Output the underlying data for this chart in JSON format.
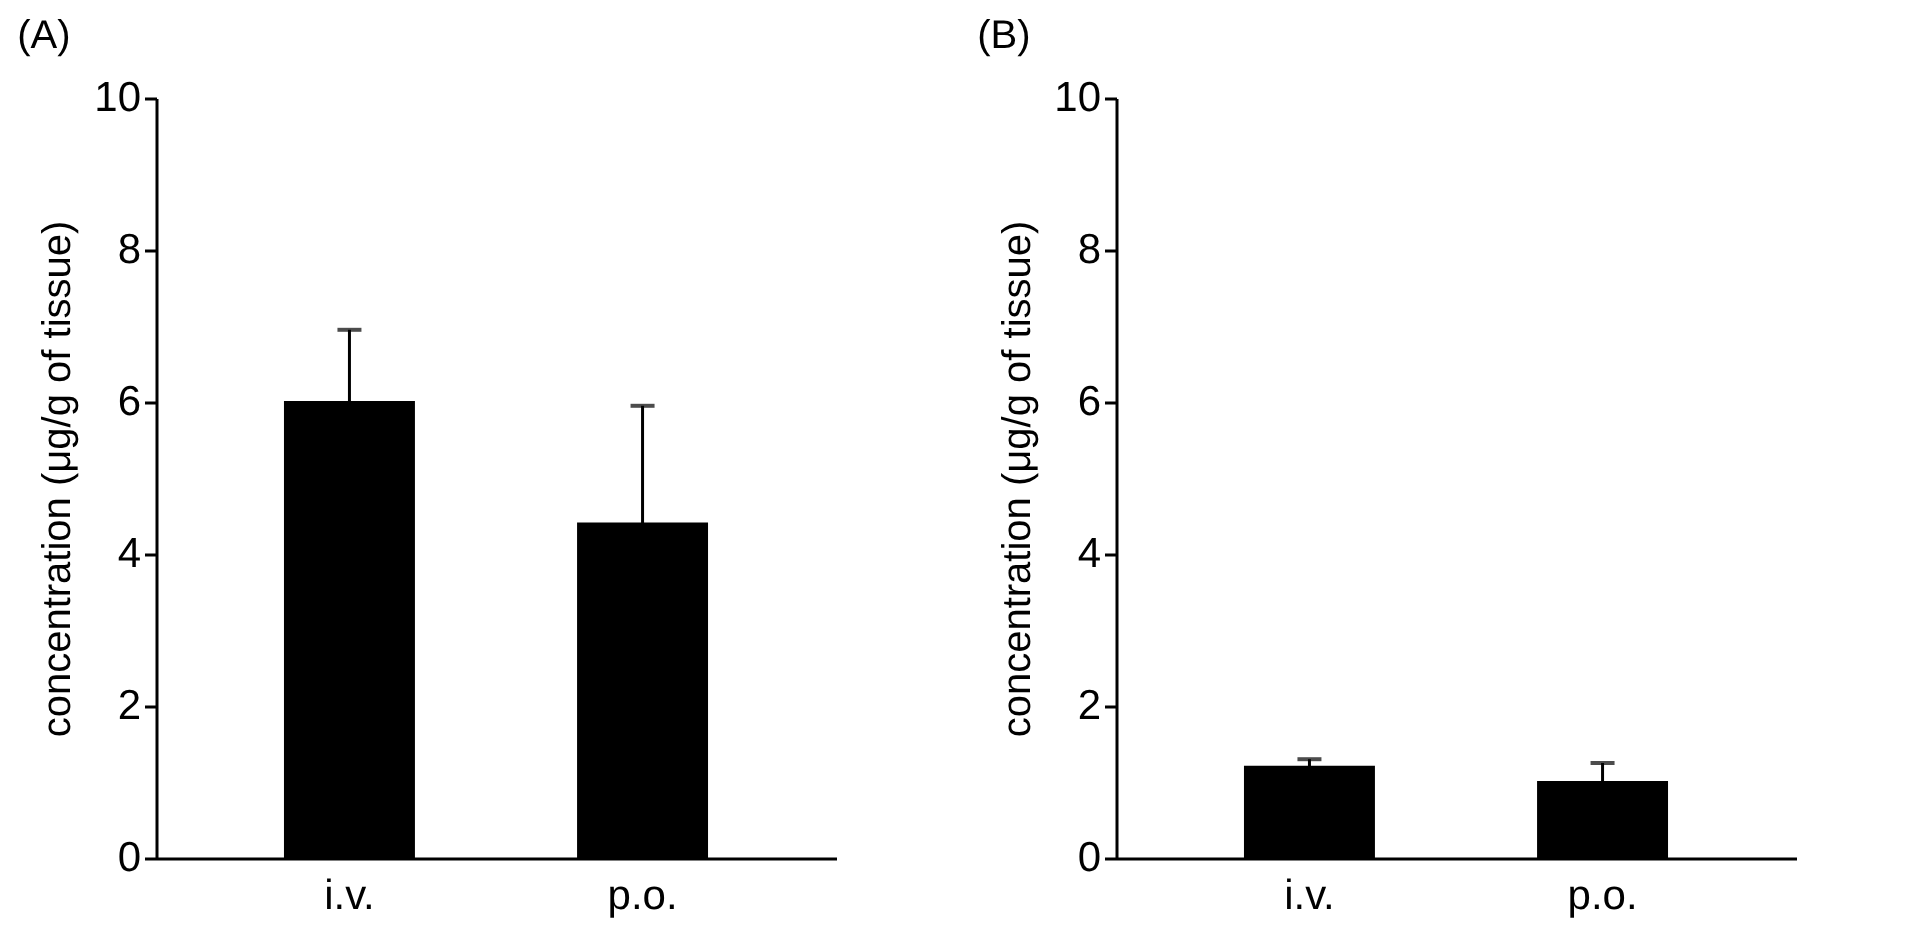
{
  "chart_data": [
    {
      "type": "bar",
      "title": "(A)",
      "ylabel": "concentration (μg/g of tissue)",
      "categories": [
        "i.v.",
        "p.o."
      ],
      "values": [
        6.0,
        4.4
      ],
      "errors": [
        [
          6.0,
          6.95
        ],
        [
          4.4,
          5.95
        ]
      ],
      "color": "#000000",
      "ylim": [
        0,
        10
      ],
      "yticks": [
        0,
        2,
        4,
        6,
        8,
        10
      ]
    },
    {
      "type": "bar",
      "title": "(B)",
      "ylabel": "concentration (μg/g of tissue)",
      "categories": [
        "i.v.",
        "p.o."
      ],
      "values": [
        1.2,
        1.0
      ],
      "errors": [
        [
          1.2,
          1.3
        ],
        [
          1.0,
          1.25
        ]
      ],
      "color": "#000000",
      "ylim": [
        0,
        10
      ],
      "yticks": [
        0,
        2,
        4,
        6,
        8,
        10
      ]
    }
  ]
}
